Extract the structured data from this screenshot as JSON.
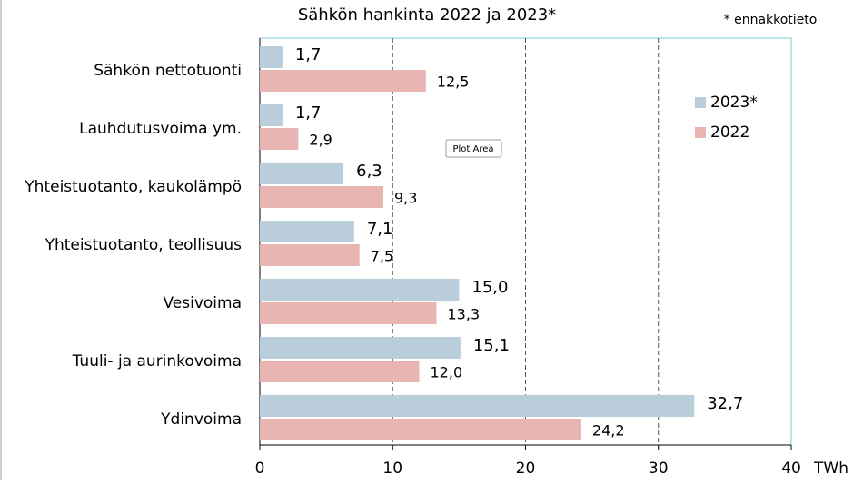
{
  "chart_data": {
    "type": "hbar",
    "title": "Sähkön hankinta 2022 ja 2023*",
    "annotation": "* ennakkotieto",
    "tooltip": "Plot Area",
    "x_unit": "TWh",
    "categories": [
      "Sähkön nettotuonti",
      "Lauhdutusvoima ym.",
      "Yhteistuotanto, kaukolämpö",
      "Yhteistuotanto, teollisuus",
      "Vesivoima",
      "Tuuli- ja aurinkovoima",
      "Ydinvoima"
    ],
    "series": [
      {
        "name": "2023*",
        "color": "#b9cddb",
        "values": [
          1.7,
          1.7,
          6.3,
          7.1,
          15.0,
          15.1,
          32.7
        ],
        "value_labels": [
          "1,7",
          "1,7",
          "6,3",
          "7,1",
          "15,0",
          "15,1",
          "32,7"
        ]
      },
      {
        "name": "2022",
        "color": "#e9b5b3",
        "values": [
          12.5,
          2.9,
          9.3,
          7.5,
          13.3,
          12.0,
          24.2
        ],
        "value_labels": [
          "12,5",
          "2,9",
          "9,3",
          "7,5",
          "13,3",
          "12,0",
          "24,2"
        ]
      }
    ],
    "xlim": [
      0,
      40
    ],
    "xticks": [
      0,
      10,
      20,
      30,
      40
    ],
    "grid": true
  }
}
